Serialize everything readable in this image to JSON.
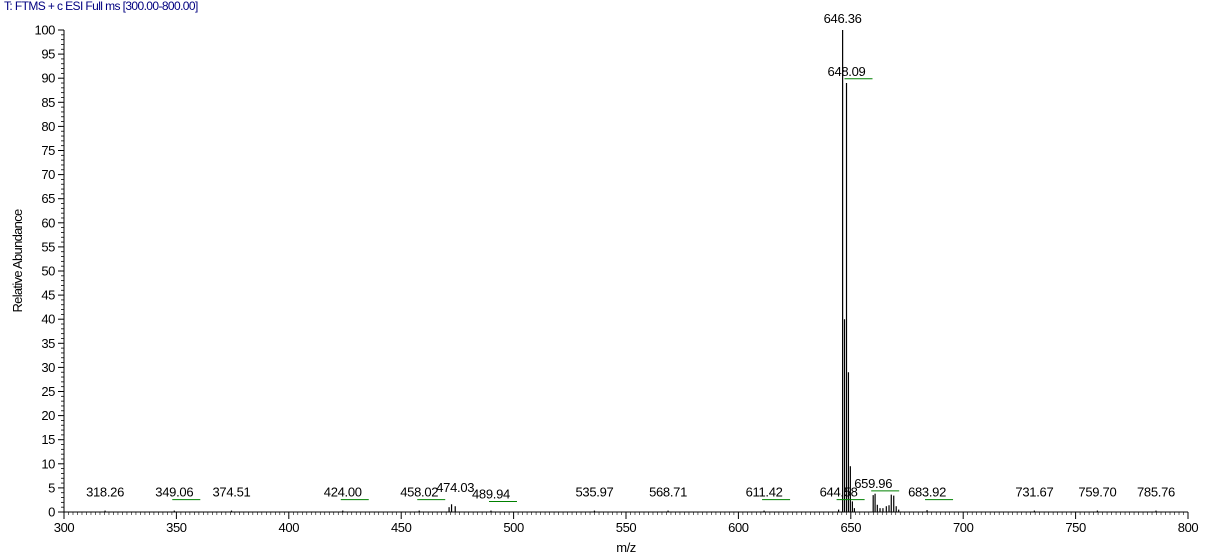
{
  "header": {
    "scan_filter": "T: FTMS + c ESI Full ms [300.00-800.00]"
  },
  "colors": {
    "header_text": "#000080",
    "axis": "#000000",
    "peak": "#000000",
    "label": "#000000",
    "annotation_line": "#008000"
  },
  "chart_data": {
    "type": "bar",
    "title": "",
    "xlabel": "m/z",
    "ylabel": "Relative Abundance",
    "xlim": [
      300,
      800
    ],
    "ylim": [
      0,
      100
    ],
    "x_ticks": [
      300,
      350,
      400,
      450,
      500,
      550,
      600,
      650,
      700,
      750,
      800
    ],
    "y_ticks": [
      0,
      5,
      10,
      15,
      20,
      25,
      30,
      35,
      40,
      45,
      50,
      55,
      60,
      65,
      70,
      75,
      80,
      85,
      90,
      95,
      100
    ],
    "grid": false,
    "peaks": [
      {
        "mz": 318.26,
        "abundance": 0.3
      },
      {
        "mz": 349.06,
        "abundance": 0.3
      },
      {
        "mz": 374.51,
        "abundance": 0.3
      },
      {
        "mz": 424.0,
        "abundance": 0.3
      },
      {
        "mz": 458.02,
        "abundance": 0.3
      },
      {
        "mz": 471.3,
        "abundance": 1.0
      },
      {
        "mz": 472.4,
        "abundance": 1.6
      },
      {
        "mz": 474.03,
        "abundance": 1.2
      },
      {
        "mz": 489.94,
        "abundance": 0.3
      },
      {
        "mz": 535.97,
        "abundance": 0.3
      },
      {
        "mz": 568.71,
        "abundance": 0.3
      },
      {
        "mz": 611.42,
        "abundance": 0.3
      },
      {
        "mz": 644.58,
        "abundance": 0.5
      },
      {
        "mz": 646.36,
        "abundance": 100
      },
      {
        "mz": 647.2,
        "abundance": 40
      },
      {
        "mz": 648.09,
        "abundance": 89
      },
      {
        "mz": 648.95,
        "abundance": 29
      },
      {
        "mz": 649.8,
        "abundance": 9.5
      },
      {
        "mz": 650.7,
        "abundance": 2.2
      },
      {
        "mz": 651.6,
        "abundance": 0.8
      },
      {
        "mz": 659.96,
        "abundance": 3.5
      },
      {
        "mz": 660.8,
        "abundance": 3.8
      },
      {
        "mz": 661.8,
        "abundance": 1.5
      },
      {
        "mz": 663.0,
        "abundance": 0.8
      },
      {
        "mz": 664.3,
        "abundance": 0.8
      },
      {
        "mz": 665.8,
        "abundance": 1.2
      },
      {
        "mz": 667.0,
        "abundance": 1.4
      },
      {
        "mz": 668.0,
        "abundance": 3.6
      },
      {
        "mz": 669.1,
        "abundance": 3.4
      },
      {
        "mz": 670.2,
        "abundance": 1.2
      },
      {
        "mz": 671.3,
        "abundance": 0.5
      },
      {
        "mz": 683.92,
        "abundance": 0.4
      },
      {
        "mz": 731.67,
        "abundance": 0.3
      },
      {
        "mz": 759.7,
        "abundance": 0.3
      },
      {
        "mz": 785.76,
        "abundance": 0.3
      }
    ],
    "annotations": [
      {
        "text": "318.26",
        "mz": 318.26,
        "y": 3.2,
        "marker": false
      },
      {
        "text": "349.06",
        "mz": 349.06,
        "y": 3.2,
        "marker": true
      },
      {
        "text": "374.51",
        "mz": 374.51,
        "y": 3.2,
        "marker": false
      },
      {
        "text": "424.00",
        "mz": 424.0,
        "y": 3.2,
        "marker": true
      },
      {
        "text": "458.02",
        "mz": 458.02,
        "y": 3.2,
        "marker": true
      },
      {
        "text": "474.03",
        "mz": 474.03,
        "y": 4.2,
        "marker": false
      },
      {
        "text": "489.94",
        "mz": 489.94,
        "y": 2.8,
        "marker": true
      },
      {
        "text": "535.97",
        "mz": 535.97,
        "y": 3.2,
        "marker": false
      },
      {
        "text": "568.71",
        "mz": 568.71,
        "y": 3.2,
        "marker": false
      },
      {
        "text": "611.42",
        "mz": 611.42,
        "y": 3.2,
        "marker": true
      },
      {
        "text": "644.58",
        "mz": 644.58,
        "y": 3.2,
        "marker": true
      },
      {
        "text": "646.36",
        "mz": 646.36,
        "y": 101.5,
        "marker": false
      },
      {
        "text": "648.09",
        "mz": 648.09,
        "y": 90.5,
        "marker": true
      },
      {
        "text": "659.96",
        "mz": 659.96,
        "y": 5.0,
        "marker": true
      },
      {
        "text": "683.92",
        "mz": 683.92,
        "y": 3.2,
        "marker": true
      },
      {
        "text": "731.67",
        "mz": 731.67,
        "y": 3.2,
        "marker": false
      },
      {
        "text": "759.70",
        "mz": 759.7,
        "y": 3.2,
        "marker": false
      },
      {
        "text": "785.76",
        "mz": 785.76,
        "y": 3.2,
        "marker": false
      }
    ]
  }
}
